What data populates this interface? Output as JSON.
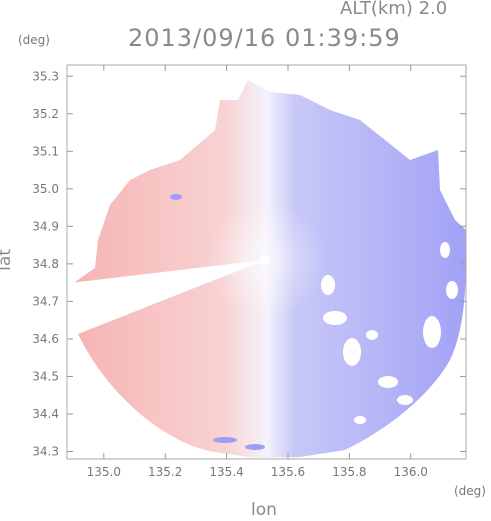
{
  "header": {
    "altitude": "ALT(km) 2.0",
    "timestamp": "2013/09/16 01:39:59"
  },
  "chart_data": {
    "type": "heatmap",
    "title": "2013/09/16 01:39:59",
    "subtitle": "ALT(km) 2.0",
    "xlabel": "lon",
    "ylabel": "lat",
    "x_unit": "(deg)",
    "y_unit": "(deg)",
    "xlim": [
      134.88,
      136.18
    ],
    "ylim": [
      34.28,
      35.33
    ],
    "x_ticks": [
      "135.0",
      "135.2",
      "135.4",
      "135.6",
      "135.8",
      "136.0"
    ],
    "y_ticks": [
      "34.3",
      "34.4",
      "34.5",
      "34.6",
      "34.7",
      "34.8",
      "34.9",
      "35.0",
      "35.1",
      "35.2",
      "35.3"
    ],
    "radar_center": [
      135.523,
      34.795
    ],
    "grid": false,
    "colors": {
      "west_half": "#f6b8b8",
      "east_half": "#a6a6f8",
      "near_zero": "#f2f2fc",
      "frame": "#aaaaaa"
    }
  }
}
